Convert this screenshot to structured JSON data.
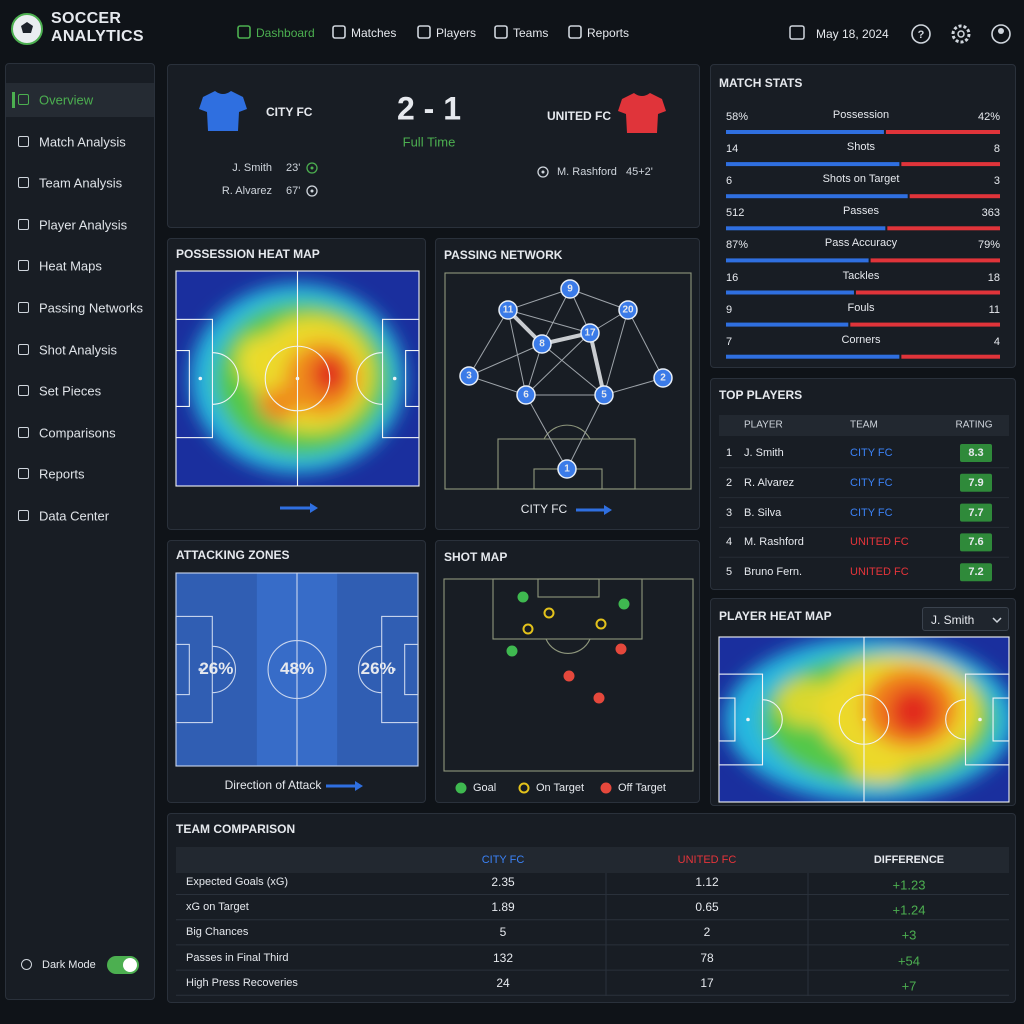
{
  "header": {
    "brand": [
      "SOCCER",
      "ANALYTICS"
    ],
    "nav": [
      "Dashboard",
      "Matches",
      "Players",
      "Teams",
      "Reports"
    ],
    "date": "May 18, 2024"
  },
  "sidebar": {
    "items": [
      "Overview",
      "Match Analysis",
      "Team Analysis",
      "Player Analysis",
      "Heat Maps",
      "Passing Networks",
      "Shot Analysis",
      "Set Pieces",
      "Comparisons",
      "Reports",
      "Data Center"
    ],
    "toggle": "Dark Mode"
  },
  "match": {
    "home": "CITY FC",
    "away": "UNITED FC",
    "score": "2 - 1",
    "status": "Full Time",
    "home_scorers": [
      {
        "name": "J. Smith",
        "minute": "23'"
      },
      {
        "name": "R. Alvarez",
        "minute": "67'"
      }
    ],
    "away_scorers": [
      {
        "name": "M. Rashford",
        "minute": "45+2'"
      }
    ]
  },
  "match_stats": {
    "title": "MATCH STATS",
    "rows": [
      {
        "label": "Possession",
        "home": 58,
        "away": 42,
        "home_label": "58%",
        "away_label": "42%"
      },
      {
        "label": "Shots",
        "home": 14,
        "away": 8
      },
      {
        "label": "Shots on Target",
        "home": 6,
        "away": 3
      },
      {
        "label": "Passes",
        "home": 512,
        "away": 363
      },
      {
        "label": "Pass Accuracy",
        "home": 87,
        "away": 79,
        "home_label": "87%",
        "away_label": "79%"
      },
      {
        "label": "Tackles",
        "home": 16,
        "away": 18
      },
      {
        "label": "Fouls",
        "home": 9,
        "away": 11
      },
      {
        "label": "Corners",
        "home": 7,
        "away": 4
      }
    ]
  },
  "possession_heat_map": {
    "title": "POSSESSION HEAT MAP"
  },
  "passing_network": {
    "title": "PASSING NETWORK",
    "team": "CITY FC",
    "players": [
      9,
      11,
      20,
      17,
      8,
      3,
      6,
      5,
      2,
      1
    ]
  },
  "attacking_zones": {
    "title": "ATTACKING ZONES",
    "values": [
      26,
      48,
      26
    ],
    "value_labels": [
      "26%",
      "48%",
      "26%"
    ],
    "caption": "Direction of Attack"
  },
  "shot_map": {
    "title": "SHOT MAP",
    "legend": [
      {
        "name": "Goal",
        "color": "#3fb950"
      },
      {
        "name": "On Target",
        "color": "#e3c21b"
      },
      {
        "name": "Off Target",
        "color": "#e5483c"
      }
    ]
  },
  "top_players": {
    "title": "TOP PLAYERS",
    "columns": [
      "PLAYER",
      "TEAM",
      "RATING"
    ],
    "rows": [
      {
        "rank": 1,
        "name": "J. Smith",
        "team": "CITY FC",
        "rating": 8.3
      },
      {
        "rank": 2,
        "name": "R. Alvarez",
        "team": "CITY FC",
        "rating": 7.9
      },
      {
        "rank": 3,
        "name": "B. Silva",
        "team": "CITY FC",
        "rating": 7.7
      },
      {
        "rank": 4,
        "name": "M. Rashford",
        "team": "UNITED FC",
        "rating": 7.6
      },
      {
        "rank": 5,
        "name": "Bruno Fern.",
        "team": "UNITED FC",
        "rating": 7.2
      }
    ]
  },
  "player_heat_map": {
    "title": "PLAYER HEAT MAP",
    "player": "J. Smith"
  },
  "team_comparison": {
    "title": "TEAM COMPARISON",
    "columns": [
      "CITY FC",
      "UNITED FC",
      "DIFFERENCE"
    ],
    "rows": [
      {
        "label": "Expected Goals (xG)",
        "city": 2.35,
        "united": 1.12,
        "difference": "+1.23"
      },
      {
        "label": "xG on Target",
        "city": 1.89,
        "united": 0.65,
        "difference": "+1.24"
      },
      {
        "label": "Big Chances",
        "city": 5,
        "united": 2,
        "difference": "+3"
      },
      {
        "label": "Passes in Final Third",
        "city": 132,
        "united": 78,
        "difference": "+54"
      },
      {
        "label": "High Press Recoveries",
        "city": 24,
        "united": 17,
        "difference": "+7"
      }
    ]
  }
}
